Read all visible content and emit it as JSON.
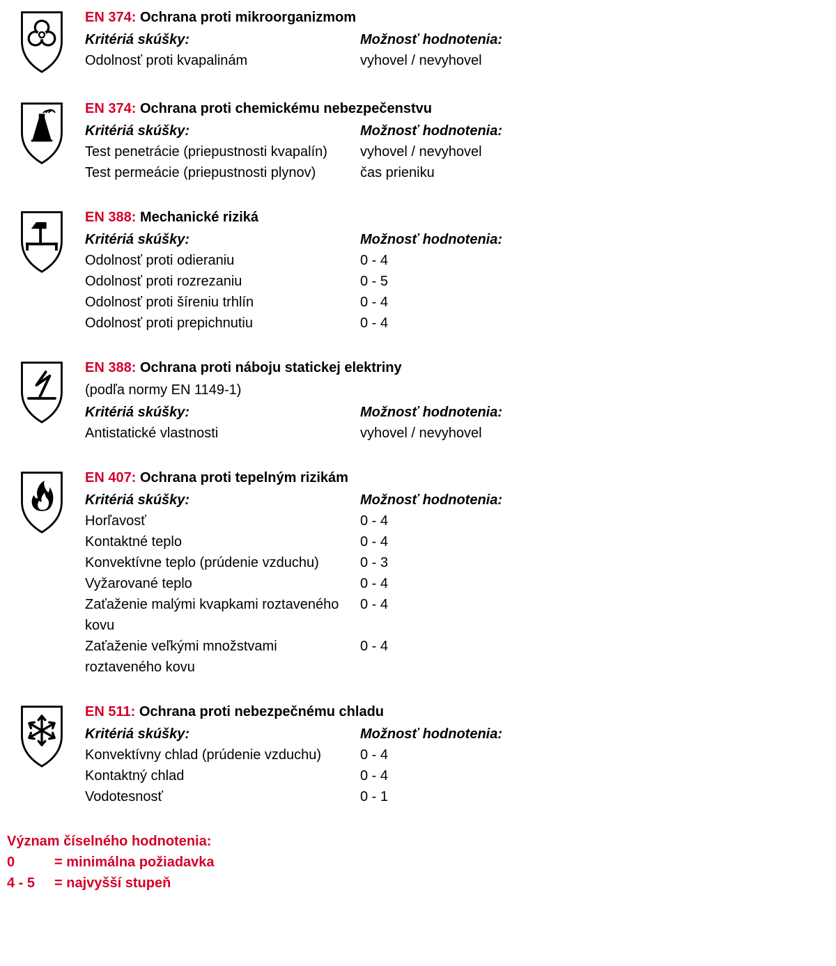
{
  "labels": {
    "criteria": "Kritériá skúšky:",
    "rating": "Možnosť hodnotenia:"
  },
  "colors": {
    "accent": "#d4002a",
    "text": "#000000",
    "background": "#ffffff"
  },
  "standards": [
    {
      "icon": "biohazard",
      "code": "EN 374:",
      "title": "Ochrana proti mikroorganizmom",
      "subtitle": null,
      "rows": [
        {
          "criterion": "Odolnosť proti kvapalinám",
          "rating": "vyhovel / nevyhovel"
        }
      ]
    },
    {
      "icon": "flask",
      "code": "EN 374:",
      "title": "Ochrana proti chemickému nebezpečenstvu",
      "subtitle": null,
      "rows": [
        {
          "criterion": "Test penetrácie (priepustnosti kvapalín)",
          "rating": "vyhovel / nevyhovel"
        },
        {
          "criterion": "Test permeácie (priepustnosti plynov)",
          "rating": "čas prieniku"
        }
      ]
    },
    {
      "icon": "hammer",
      "code": "EN 388:",
      "title": "Mechanické riziká",
      "subtitle": null,
      "rows": [
        {
          "criterion": "Odolnosť proti odieraniu",
          "rating": "0 - 4"
        },
        {
          "criterion": "Odolnosť proti rozrezaniu",
          "rating": "0 - 5"
        },
        {
          "criterion": "Odolnosť proti šíreniu trhlín",
          "rating": "0 - 4"
        },
        {
          "criterion": "Odolnosť proti prepichnutiu",
          "rating": "0 - 4"
        }
      ]
    },
    {
      "icon": "static",
      "code": "EN 388:",
      "title": "Ochrana proti náboju statickej elektriny",
      "subtitle": "(podľa normy EN 1149-1)",
      "rows": [
        {
          "criterion": "Antistatické vlastnosti",
          "rating": "vyhovel / nevyhovel"
        }
      ]
    },
    {
      "icon": "flame",
      "code": "EN 407:",
      "title": "Ochrana proti tepelným rizikám",
      "subtitle": null,
      "rows": [
        {
          "criterion": "Horľavosť",
          "rating": "0 - 4"
        },
        {
          "criterion": "Kontaktné teplo",
          "rating": "0 - 4"
        },
        {
          "criterion": "Konvektívne teplo (prúdenie vzduchu)",
          "rating": "0 - 3"
        },
        {
          "criterion": "Vyžarované teplo",
          "rating": "0 - 4"
        },
        {
          "criterion": "Zaťaženie malými kvapkami roztaveného kovu",
          "rating": "0 - 4"
        },
        {
          "criterion": "Zaťaženie veľkými množstvami roztaveného kovu",
          "rating": "0 - 4"
        }
      ]
    },
    {
      "icon": "snowflake",
      "code": "EN 511:",
      "title": "Ochrana proti nebezpečnému chladu",
      "subtitle": null,
      "rows": [
        {
          "criterion": "Konvektívny chlad (prúdenie vzduchu)",
          "rating": "0 - 4"
        },
        {
          "criterion": "Kontaktný chlad",
          "rating": "0 - 4"
        },
        {
          "criterion": "Vodotesnosť",
          "rating": "0 - 1"
        }
      ]
    }
  ],
  "footer": {
    "heading": "Význam číselného hodnotenia:",
    "rows": [
      {
        "num": "0",
        "desc": "= minimálna požiadavka"
      },
      {
        "num": "4 - 5",
        "desc": "= najvyšší stupeň"
      }
    ]
  }
}
